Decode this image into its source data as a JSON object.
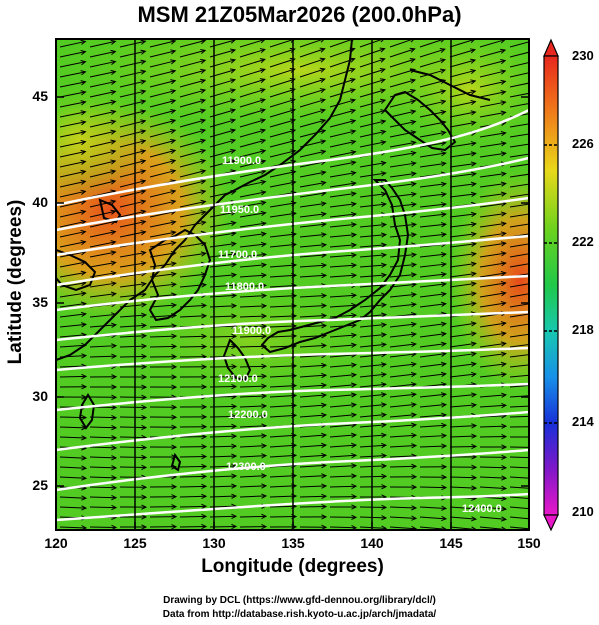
{
  "title": "MSM 21Z05Mar2026 (200.0hPa)",
  "xaxis": {
    "label": "Longitude (degrees)",
    "ticks": [
      "120",
      "125",
      "130",
      "135",
      "140",
      "145",
      "150"
    ]
  },
  "yaxis": {
    "label": "Latitude  (degrees)",
    "ticks": [
      "25",
      "30",
      "35",
      "40",
      "45"
    ]
  },
  "colorbar": {
    "ticks": [
      "230",
      "226",
      "222",
      "218",
      "214",
      "210"
    ],
    "min": 210,
    "max": 230
  },
  "contours": [
    {
      "label": "11900.0"
    },
    {
      "label": "11950.0"
    },
    {
      "label": "11700.0"
    },
    {
      "label": "11800.0"
    },
    {
      "label": "11900.0"
    },
    {
      "label": "12100.0"
    },
    {
      "label": "12200.0"
    },
    {
      "label": "12300.0"
    },
    {
      "label": "12400.0"
    }
  ],
  "credits": [
    "Drawing by DCL (https://www.gfd-dennou.org/library/dcl/)",
    "Data from http://database.rish.kyoto-u.ac.jp/arch/jmadata/"
  ],
  "colors": {
    "field_base": "#52d01e",
    "warm": "#f07a1a",
    "mid": "#a8d61a",
    "contour": "#ffffff",
    "vector": "#000000"
  }
}
